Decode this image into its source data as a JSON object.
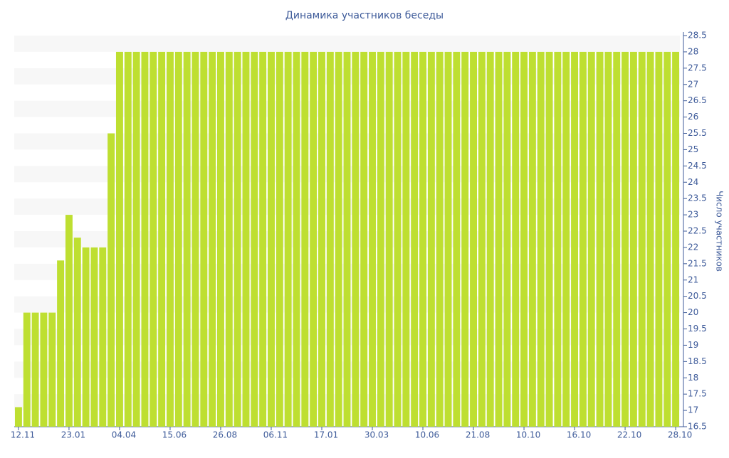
{
  "chart_data": {
    "type": "bar",
    "title": "Динамика участников беседы",
    "y_label": "Число участников",
    "categories": [
      "12.11",
      null,
      null,
      null,
      null,
      null,
      "23.01",
      null,
      null,
      null,
      null,
      null,
      "04.04",
      null,
      null,
      null,
      null,
      null,
      "15.06",
      null,
      null,
      null,
      null,
      null,
      "26.08",
      null,
      null,
      null,
      null,
      null,
      "06.11",
      null,
      null,
      null,
      null,
      null,
      "17.01",
      null,
      null,
      null,
      null,
      null,
      "30.03",
      null,
      null,
      null,
      null,
      null,
      "10.06",
      null,
      null,
      null,
      null,
      null,
      "21.08",
      null,
      null,
      null,
      null,
      null,
      "10.10",
      null,
      null,
      null,
      null,
      null,
      "16.10",
      null,
      null,
      null,
      null,
      null,
      "22.10",
      null,
      null,
      null,
      null,
      null,
      "28.10"
    ],
    "values": [
      17.1,
      20,
      20,
      20,
      20,
      21.6,
      23,
      22.3,
      22,
      22,
      22,
      25.5,
      28,
      28,
      28,
      28,
      28,
      28,
      28,
      28,
      28,
      28,
      28,
      28,
      28,
      28,
      28,
      28,
      28,
      28,
      28,
      28,
      28,
      28,
      28,
      28,
      28,
      28,
      28,
      28,
      28,
      28,
      28,
      28,
      28,
      28,
      28,
      28,
      28,
      28,
      28,
      28,
      28,
      28,
      28,
      28,
      28,
      28,
      28,
      28,
      28,
      28,
      28,
      28,
      28,
      28,
      28,
      28,
      28,
      28,
      28,
      28,
      28,
      28,
      28,
      28,
      28,
      28,
      28
    ],
    "color": "#bedf31",
    "ylim": [
      16.5,
      28.5
    ],
    "yticks": [
      16.5,
      17,
      17.5,
      18,
      18.5,
      19,
      19.5,
      20,
      20.5,
      21,
      21.5,
      22,
      22.5,
      23,
      23.5,
      24,
      24.5,
      25,
      25.5,
      26,
      26.5,
      27,
      27.5,
      28,
      28.5
    ],
    "grid": true,
    "y_axis_side": "right"
  }
}
